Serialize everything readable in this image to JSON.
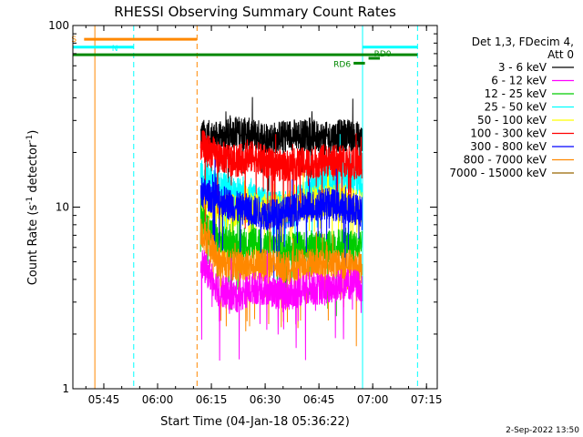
{
  "chart_data": {
    "type": "line",
    "title": "RHESSI Observing Summary Count Rates",
    "xlabel": "Start Time (04-Jan-18 05:36:22)",
    "ylabel": "Count Rate (s",
    "ylabel_sup1": "-1",
    "ylabel_mid": " detector",
    "ylabel_sup2": "-1",
    "ylabel_end": ")",
    "yscale": "log",
    "ylim": [
      1,
      100
    ],
    "xlim": [
      "05:36:22",
      "07:18:00"
    ],
    "x_ticks": [
      "05:45",
      "06:00",
      "06:15",
      "06:30",
      "06:45",
      "07:00",
      "07:15"
    ],
    "y_ticks": [
      "1",
      "10",
      "100"
    ],
    "legend_header": [
      "Det 1,3, FDecim 4,",
      "Att 0"
    ],
    "legend_placement": "right",
    "timestamp": "2-Sep-2022 13:50",
    "data_interval": [
      "06:12",
      "06:57"
    ],
    "series": [
      {
        "name": "3 - 6 keV",
        "color": "#000000",
        "values": [
          25,
          24,
          26,
          25,
          24,
          25,
          25,
          24,
          25,
          24
        ]
      },
      {
        "name": "6 - 12 keV",
        "color": "#ff00ff",
        "values": [
          5.0,
          3.5,
          3.2,
          3.6,
          3.4,
          3.3,
          3.6,
          3.5,
          3.8,
          3.7
        ]
      },
      {
        "name": "12 - 25 keV",
        "color": "#00cc00",
        "values": [
          8.5,
          6.5,
          6.2,
          6.3,
          6.0,
          6.0,
          6.2,
          6.0,
          6.3,
          6.0
        ]
      },
      {
        "name": "25 - 50 keV",
        "color": "#00ffff",
        "values": [
          15,
          13,
          12,
          11,
          10,
          10,
          12,
          14,
          15,
          14
        ]
      },
      {
        "name": "50 - 100 keV",
        "color": "#ffff00",
        "values": [
          11,
          10,
          9.5,
          10,
          9.5,
          10,
          10.5,
          11,
          11,
          10
        ]
      },
      {
        "name": "100 - 300 keV",
        "color": "#ff0000",
        "values": [
          22,
          19,
          18,
          19,
          17,
          17,
          17.5,
          18,
          18,
          17
        ]
      },
      {
        "name": "300 - 800 keV",
        "color": "#0000ff",
        "values": [
          12,
          11,
          10,
          9.5,
          9,
          9.5,
          10,
          10.5,
          10,
          9.5
        ]
      },
      {
        "name": "800 - 7000 keV",
        "color": "#ff8800",
        "values": [
          7.5,
          5.0,
          4.8,
          4.8,
          4.8,
          4.8,
          4.8,
          4.8,
          4.8,
          4.6
        ]
      },
      {
        "name": "7000 - 15000 keV",
        "color": "#996600",
        "values": []
      }
    ],
    "series_times": [
      "06:12",
      "06:17",
      "06:22",
      "06:27",
      "06:32",
      "06:37",
      "06:42",
      "06:47",
      "06:52",
      "06:57"
    ],
    "bars": [
      {
        "label": "S",
        "color": "#ff8800",
        "start": "05:39:30",
        "end": "06:11:00",
        "level": 84
      },
      {
        "label": "N",
        "color": "#00ffff",
        "start": "05:36:22",
        "end": "05:53:20",
        "level": 76
      },
      {
        "label": "",
        "color": "#00ffff",
        "start": "06:57:10",
        "end": "07:12:30",
        "level": 76
      },
      {
        "label": "",
        "color": "#008800",
        "start": "05:36:22",
        "end": "07:12:30",
        "level": 69
      },
      {
        "label": "RD0",
        "color": "#008800",
        "start": "06:58:50",
        "end": "07:02:00",
        "level": 66
      },
      {
        "label": "RD6",
        "color": "#008800",
        "start": "06:54:40",
        "end": "06:57:50",
        "level": 62
      }
    ],
    "vlines": [
      {
        "color": "#00ffff",
        "time": "05:36:22",
        "style": "solid"
      },
      {
        "color": "#ff8800",
        "time": "05:42:30",
        "style": "solid"
      },
      {
        "color": "#00ffff",
        "time": "05:53:20",
        "style": "dashed"
      },
      {
        "color": "#ff8800",
        "time": "06:11:00",
        "style": "dashed"
      },
      {
        "color": "#00ffff",
        "time": "06:57:10",
        "style": "solid"
      },
      {
        "color": "#00ffff",
        "time": "07:12:30",
        "style": "dashed"
      }
    ]
  }
}
